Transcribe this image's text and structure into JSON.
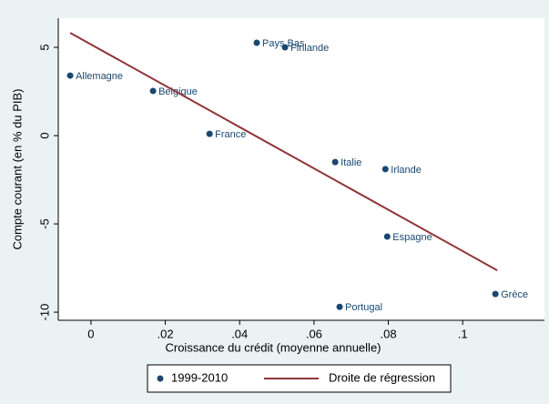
{
  "chart_data": {
    "type": "scatter",
    "x_label": "Croissance du crédit (moyenne annuelle)",
    "y_label": "Compte courant (en % du PIB)",
    "xlim": [
      -0.0088,
      0.122
    ],
    "ylim": [
      -10.46,
      6.65
    ],
    "xticks": [
      0,
      {
        "value": 0.02,
        "label": ".02"
      },
      {
        "value": 0.04,
        "label": ".04"
      },
      {
        "value": 0.06,
        "label": ".06"
      },
      {
        "value": 0.08,
        "label": ".08"
      },
      {
        "value": 0.1,
        "label": ".1"
      }
    ],
    "yticks": [
      5,
      0,
      -5,
      -10
    ],
    "series": [
      {
        "name": "1999-2010",
        "type": "scatter",
        "color": "#1a476f",
        "labels": [
          "Allemagne",
          "Belgique",
          "France",
          "Pays Bas",
          "Finlande",
          "Italie",
          "Irlande",
          "Espagne",
          "Portugal",
          "Grèce"
        ],
        "x": [
          -0.0056,
          0.0167,
          0.0319,
          0.0446,
          0.0522,
          0.0657,
          0.0792,
          0.0797,
          0.0669,
          0.1088
        ],
        "values": [
          3.4,
          2.53,
          0.1,
          5.26,
          5.0,
          -1.5,
          -1.9,
          -5.72,
          -9.7,
          -8.97
        ]
      },
      {
        "name": "Droite de régression",
        "type": "line",
        "color": "#90353b",
        "x": [
          -0.0056,
          0.1093
        ],
        "values": [
          5.82,
          -7.63
        ]
      }
    ]
  }
}
